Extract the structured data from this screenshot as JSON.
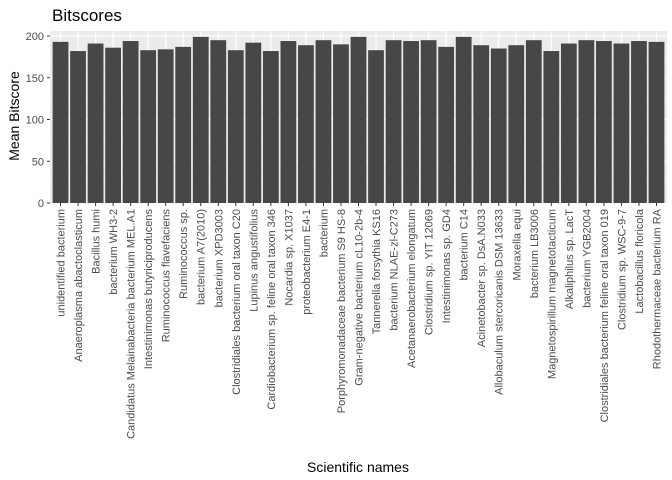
{
  "chart_data": {
    "type": "bar",
    "title": "Bitscores",
    "xlabel": "Scientific names",
    "ylabel": "Mean Bitscore",
    "ylim": [
      0,
      206
    ],
    "yticks": [
      0,
      50,
      100,
      150,
      200
    ],
    "grid": true,
    "legend": "none",
    "colors": {
      "bar": "#474747",
      "panel": "#ebebeb",
      "gridline": "#ffffff",
      "axis_text": "#4d4d4d",
      "tick": "#333333"
    },
    "categories": [
      "unidentified bacterium",
      "Anaeroplasma abactoclasticum",
      "Bacillus humi",
      "bacterium WH3-2",
      "Candidatus Melainabacteria bacterium MEL.A1",
      "Intestinimonas butyriciproducens",
      "Ruminococcus flavefaciens",
      "Ruminococcus sp.",
      "bacterium A7(2010)",
      "bacterium XPD3003",
      "Clostridiales bacterium oral taxon C20",
      "Lupinus angustifolius",
      "Cardiobacterium sp. feline oral taxon 346",
      "Nocardia sp. X1037",
      "proteobacterium E4-1",
      "bacterium",
      "Porphyromonadaceae bacterium S9 HS-8",
      "Gram-negative bacterium cL10-2b-4",
      "Tannerella forsythia KS16",
      "bacterium NLAE-zl-C273",
      "Acetanaerobacterium elongatum",
      "Clostridium sp. YIT 12069",
      "Intestinimonas sp. GD4",
      "bacterium C14",
      "Acinetobacter sp. DsA.N033",
      "Allobaculum stercoricanis DSM 13633",
      "Moraxella equi",
      "bacterium LB3006",
      "Magnetospirillum magnetotacticum",
      "Alkaliphilus sp. LacT",
      "bacterium YGB2004",
      "Clostridiales bacterium feline oral taxon 019",
      "Clostridium sp. WSC-9-7",
      "Lactobacillus floricola",
      "Rhodothermaceae bacterium RA"
    ],
    "values": [
      193,
      182,
      191,
      186,
      194,
      183,
      184,
      187,
      199,
      195,
      183,
      192,
      182,
      194,
      189,
      195,
      190,
      199,
      183,
      195,
      194,
      195,
      187,
      199,
      189,
      185,
      189,
      195,
      182,
      191,
      195,
      194,
      191,
      194,
      193
    ]
  }
}
